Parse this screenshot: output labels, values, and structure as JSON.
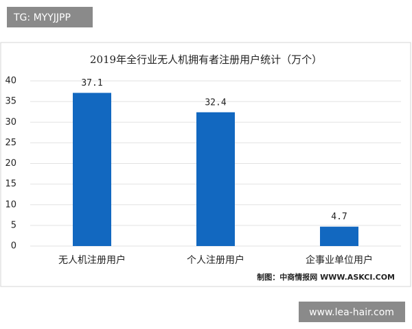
{
  "overlays": {
    "top_label": "TG: MYYJJPP",
    "bottom_label": "www.lea-hair.com"
  },
  "chart_data": {
    "type": "bar",
    "title": "2019年全行业无人机拥有者注册用户统计（万个）",
    "categories": [
      "无人机注册用户",
      "个人注册用户",
      "企事业单位用户"
    ],
    "values": [
      37.1,
      32.4,
      4.7
    ],
    "color": "#1268c0",
    "ylim": [
      0,
      40
    ],
    "yticks": [
      0,
      5,
      10,
      15,
      20,
      25,
      30,
      35,
      40
    ],
    "grid": true,
    "source": "制图：中商情报网 WWW.ASKCI.COM"
  }
}
